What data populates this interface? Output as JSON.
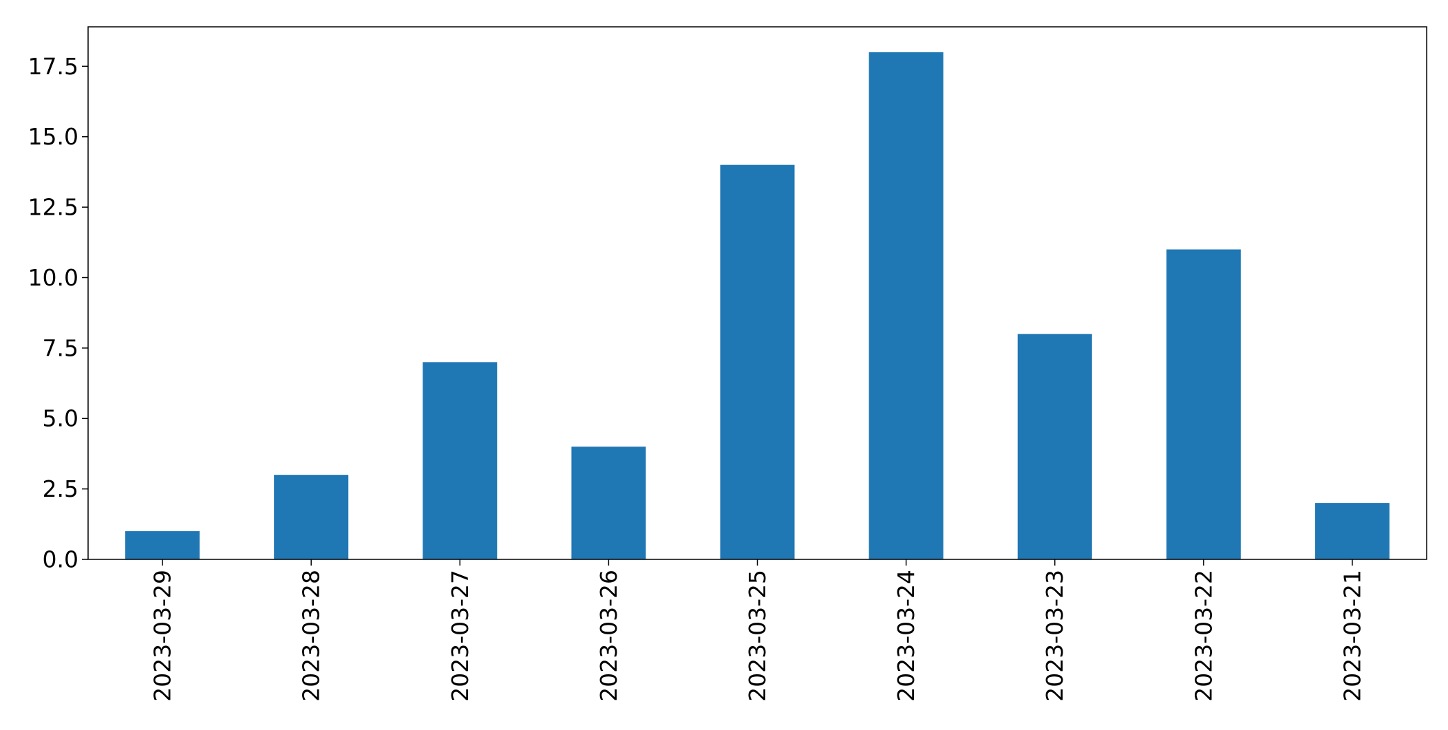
{
  "chart_data": {
    "type": "bar",
    "categories": [
      "2023-03-29",
      "2023-03-28",
      "2023-03-27",
      "2023-03-26",
      "2023-03-25",
      "2023-03-24",
      "2023-03-23",
      "2023-03-22",
      "2023-03-21"
    ],
    "values": [
      1,
      3,
      7,
      4,
      14,
      18,
      8,
      11,
      2
    ],
    "title": "",
    "xlabel": "",
    "ylabel": "",
    "ylim": [
      0,
      18.9
    ],
    "yticks": [
      "0.0",
      "2.5",
      "5.0",
      "7.5",
      "10.0",
      "12.5",
      "15.0",
      "17.5"
    ],
    "grid": false,
    "legend": "none",
    "bar_color": "#1f77b4",
    "axis_color": "#000000"
  }
}
